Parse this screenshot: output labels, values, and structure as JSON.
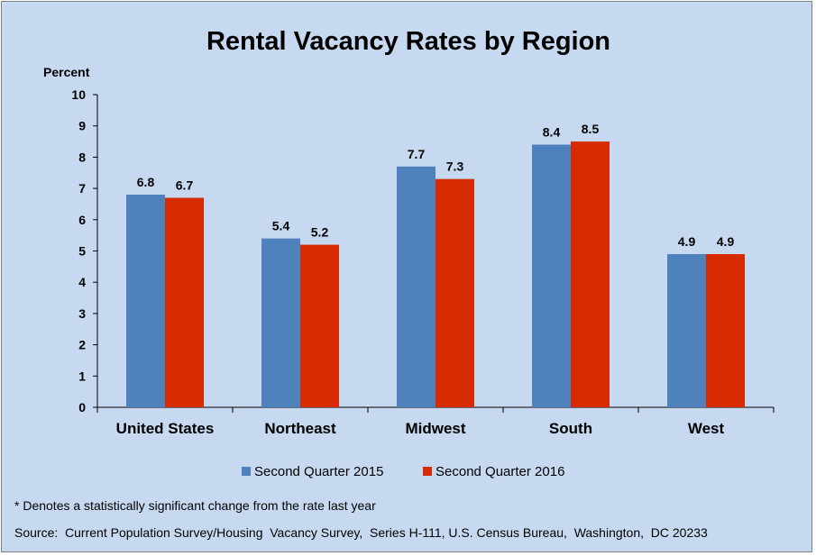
{
  "chart_data": {
    "type": "bar",
    "title": "Rental Vacancy Rates by Region",
    "ylabel": "Percent",
    "xlabel": "",
    "categories": [
      "United States",
      "Northeast",
      "Midwest",
      "South",
      "West"
    ],
    "series": [
      {
        "name": "Second Quarter 2015",
        "color": "#4f81bd",
        "values": [
          6.8,
          5.4,
          7.7,
          8.4,
          4.9
        ]
      },
      {
        "name": "Second Quarter 2016",
        "color": "#d62a00",
        "values": [
          6.7,
          5.2,
          7.3,
          8.5,
          4.9
        ]
      }
    ],
    "ylim": [
      0,
      10
    ],
    "yticks": [
      0,
      1,
      2,
      3,
      4,
      5,
      6,
      7,
      8,
      9,
      10
    ],
    "grid": false,
    "legend": "bottom",
    "data_labels": true
  },
  "footnotes": {
    "note": "* Denotes a statistically significant change from the rate last year",
    "source": "Source:  Current Population Survey/Housing  Vacancy Survey,  Series H-111, U.S. Census Bureau,  Washington,  DC 20233"
  },
  "colors": {
    "background": "#c6d9f1",
    "border": "#7f7f7f"
  }
}
